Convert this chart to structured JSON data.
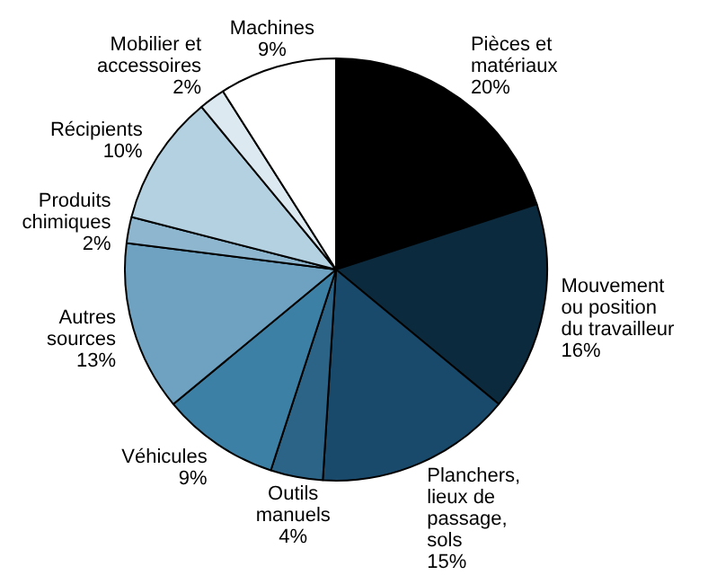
{
  "chart_data": {
    "type": "pie",
    "categories": [
      "Pièces et matériaux",
      "Mouvement ou position du travailleur",
      "Planchers, lieux de passage, sols",
      "Outils manuels",
      "Véhicules",
      "Autres sources",
      "Produits chimiques",
      "Récipients",
      "Mobilier et accessoires",
      "Machines"
    ],
    "values": [
      20,
      16,
      15,
      4,
      9,
      13,
      2,
      10,
      2,
      9
    ],
    "value_labels": [
      "20%",
      "16%",
      "15%",
      "4%",
      "9%",
      "13%",
      "2%",
      "10%",
      "2%",
      "9%"
    ],
    "colors": [
      "#000000",
      "#0b2a3e",
      "#1a4a6b",
      "#2c6488",
      "#3d80a6",
      "#6ea2c0",
      "#8eb7cf",
      "#b4d1e1",
      "#dce9f1",
      "#ffffff"
    ],
    "legend": false
  }
}
